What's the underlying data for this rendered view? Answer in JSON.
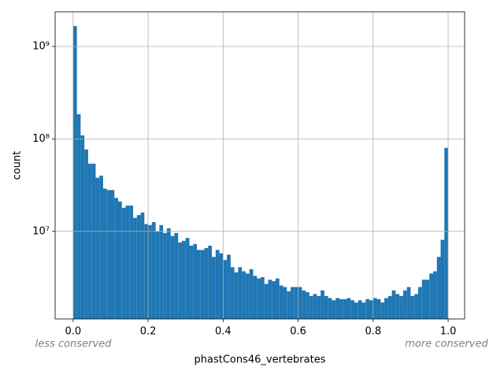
{
  "chart_data": {
    "type": "histogram",
    "xlabel": "phastCons46_vertebrates",
    "ylabel": "count",
    "annotations": [
      "less conserved",
      "more conserved"
    ],
    "color": "#1f77b4",
    "log_y": true,
    "grid": true,
    "bins": [
      0,
      0.01,
      0.02,
      0.03,
      0.04,
      0.05,
      0.06,
      0.07,
      0.08,
      0.09,
      0.1,
      0.11,
      0.12,
      0.13,
      0.14,
      0.15,
      0.16,
      0.17,
      0.18,
      0.19,
      0.2,
      0.21,
      0.22,
      0.23,
      0.24,
      0.25,
      0.26,
      0.27,
      0.28,
      0.29,
      0.3,
      0.31,
      0.32,
      0.33,
      0.34,
      0.35,
      0.36,
      0.37,
      0.38,
      0.39,
      0.4,
      0.41,
      0.42,
      0.43,
      0.44,
      0.45,
      0.46,
      0.47,
      0.48,
      0.49,
      0.5,
      0.51,
      0.52,
      0.53,
      0.54,
      0.55,
      0.56,
      0.57,
      0.58,
      0.59,
      0.6,
      0.61,
      0.62,
      0.63,
      0.64,
      0.65,
      0.66,
      0.67,
      0.68,
      0.69,
      0.7,
      0.71,
      0.72,
      0.73,
      0.74,
      0.75,
      0.76,
      0.77,
      0.78,
      0.79,
      0.8,
      0.81,
      0.82,
      0.83,
      0.84,
      0.85,
      0.86,
      0.87,
      0.88,
      0.89,
      0.9,
      0.91,
      0.92,
      0.93,
      0.94,
      0.95,
      0.96,
      0.97,
      0.98,
      0.99,
      1
    ],
    "counts": [
      1660000000,
      185000000,
      109000000,
      77000000,
      54000000,
      54000000,
      38000000,
      40000000,
      29000000,
      28000000,
      28000000,
      23000000,
      21000000,
      18000000,
      19000000,
      19000000,
      14000000,
      15000000,
      16000000,
      12000000,
      11700000,
      12600000,
      10000000,
      11700000,
      9600000,
      10800000,
      8900000,
      9600000,
      7600000,
      7900000,
      8500000,
      7000000,
      7300000,
      6300000,
      6300000,
      6600000,
      7000000,
      5300000,
      6300000,
      5800000,
      4900000,
      5600000,
      4100000,
      3600000,
      4100000,
      3700000,
      3500000,
      3900000,
      3300000,
      3100000,
      3200000,
      2700000,
      3000000,
      2900000,
      3100000,
      2600000,
      2500000,
      2250000,
      2500000,
      2500000,
      2500000,
      2300000,
      2200000,
      2000000,
      2100000,
      2000000,
      2300000,
      2000000,
      1900000,
      1800000,
      1900000,
      1850000,
      1850000,
      1900000,
      1800000,
      1700000,
      1800000,
      1700000,
      1850000,
      1800000,
      1900000,
      1850000,
      1700000,
      1900000,
      2000000,
      2300000,
      2100000,
      2000000,
      2300000,
      2500000,
      2000000,
      2100000,
      2500000,
      3000000,
      3000000,
      3500000,
      3700000,
      5300000,
      8100000,
      80000000
    ],
    "xlim": [
      -0.048,
      1.044
    ],
    "ylim": [
      1130000,
      2370000000
    ],
    "xticks": [
      {
        "value": 0,
        "label": "0.0"
      },
      0.2,
      0.4,
      0.6,
      0.8,
      {
        "value": 1,
        "label": "1.0"
      }
    ],
    "yticks": [
      {
        "value": 10000000,
        "label": "10⁷"
      },
      {
        "value": 100000000,
        "label": "10⁸"
      },
      {
        "value": 1000000000,
        "label": "10⁹"
      }
    ]
  }
}
